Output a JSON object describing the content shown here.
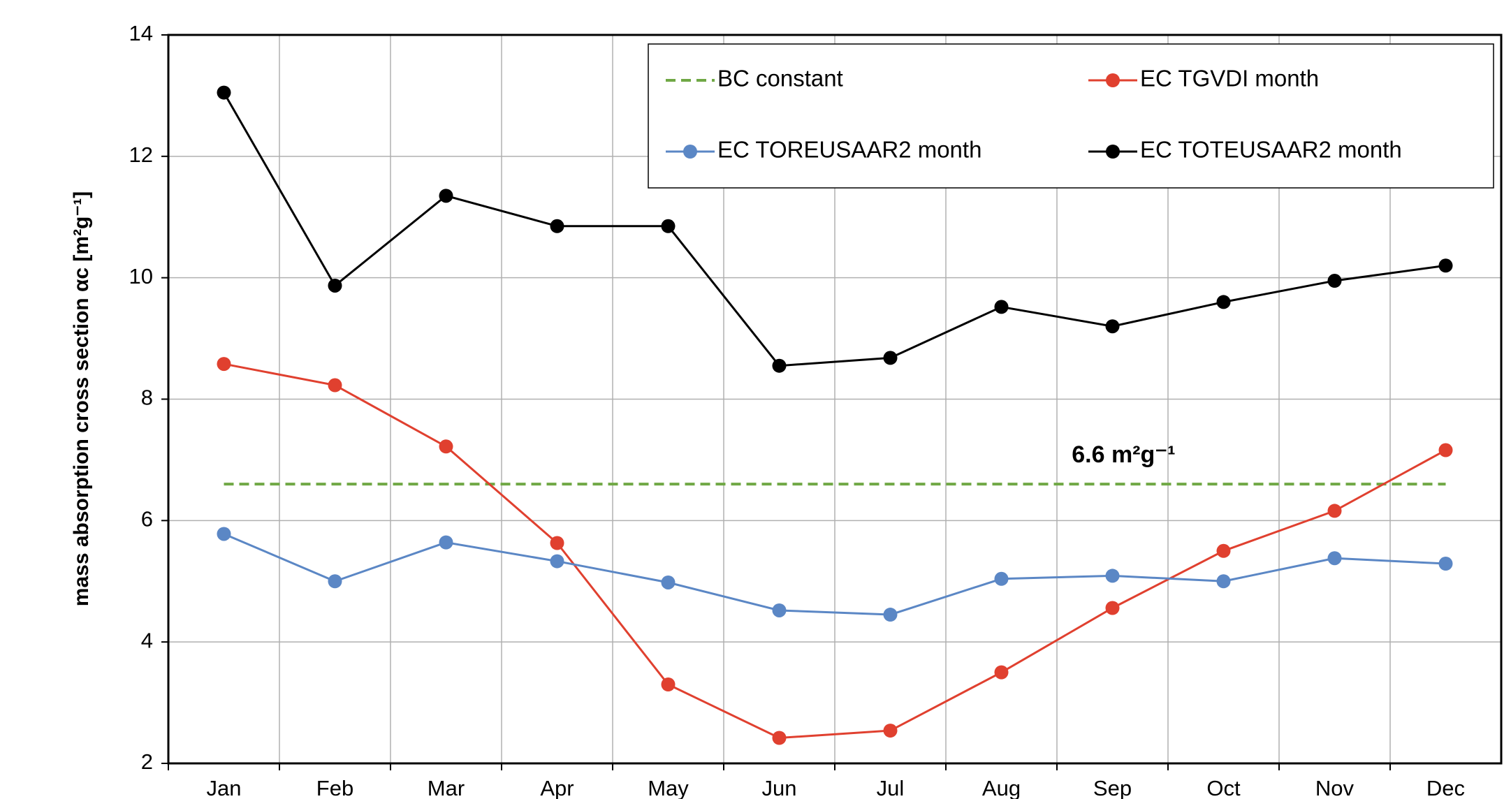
{
  "chart_data": {
    "type": "line",
    "y_label": "mass absorption cross section αc [m²g⁻¹]",
    "annotation": "6.6 m²g⁻¹",
    "categories": [
      "Jan",
      "Feb",
      "Mar",
      "Apr",
      "May",
      "Jun",
      "Jul",
      "Aug",
      "Sep",
      "Oct",
      "Nov",
      "Dec"
    ],
    "series": [
      {
        "name": "BC constant",
        "color": "#70a845",
        "style": "dashed",
        "values": [
          6.6,
          6.6,
          6.6,
          6.6,
          6.6,
          6.6,
          6.6,
          6.6,
          6.6,
          6.6,
          6.6,
          6.6
        ]
      },
      {
        "name": "EC TGVDI month",
        "color": "#e0402f",
        "style": "solid",
        "values": [
          8.58,
          8.23,
          7.22,
          5.63,
          3.3,
          2.42,
          2.54,
          3.5,
          4.56,
          5.5,
          6.16,
          7.16
        ]
      },
      {
        "name": "EC TOREUSAAR2 month",
        "color": "#5b87c5",
        "style": "solid",
        "values": [
          5.78,
          5.0,
          5.64,
          5.33,
          4.98,
          4.52,
          4.45,
          5.04,
          5.09,
          5.0,
          5.38,
          5.29
        ]
      },
      {
        "name": "EC TOTEUSAAR2 month",
        "color": "#000000",
        "style": "solid",
        "values": [
          13.05,
          9.87,
          11.35,
          10.85,
          10.85,
          8.55,
          8.68,
          9.52,
          9.2,
          9.6,
          9.95,
          10.2
        ]
      }
    ],
    "ylim": [
      2,
      14
    ],
    "yticks": [
      2,
      4,
      6,
      8,
      10,
      12,
      14
    ],
    "grid": true,
    "legend": "upper right"
  }
}
